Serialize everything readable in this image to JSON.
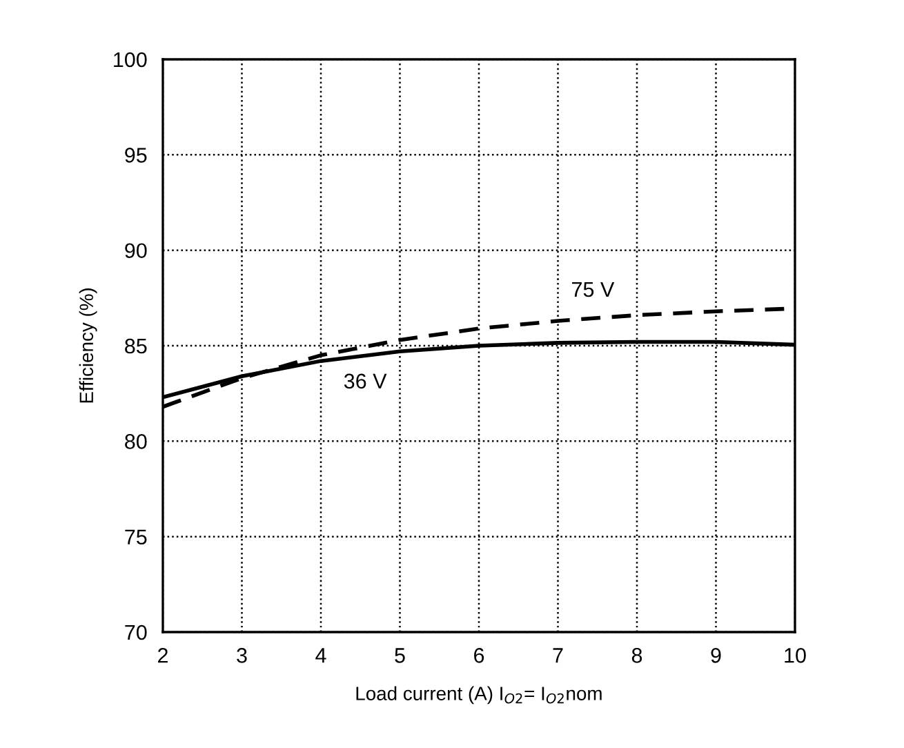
{
  "chart_data": {
    "type": "line",
    "xlabel": "Load current (A) I$_{O2}$= I$_{O2}$nom",
    "ylabel": "Efficiency (%)",
    "x": [
      2,
      3,
      4,
      5,
      6,
      7,
      8,
      9,
      10
    ],
    "series": [
      {
        "color": "#000000",
        "line_style": "solid",
        "values": [
          82.3,
          83.4,
          84.2,
          84.7,
          85.0,
          85.15,
          85.2,
          85.2,
          85.05
        ]
      },
      {
        "color": "#000000",
        "line_style": "dashed",
        "values": [
          81.8,
          83.3,
          84.5,
          85.3,
          85.9,
          86.3,
          86.6,
          86.8,
          86.95
        ]
      }
    ],
    "annotations": [
      "36 V",
      "75 V"
    ],
    "xlim": [
      2,
      10
    ],
    "xticks": [
      2,
      3,
      4,
      5,
      6,
      7,
      8,
      9,
      10
    ],
    "ylim": [
      70,
      100
    ],
    "yticks": [
      70,
      75,
      80,
      85,
      90,
      95,
      100
    ],
    "grid": true,
    "marker": "none"
  }
}
